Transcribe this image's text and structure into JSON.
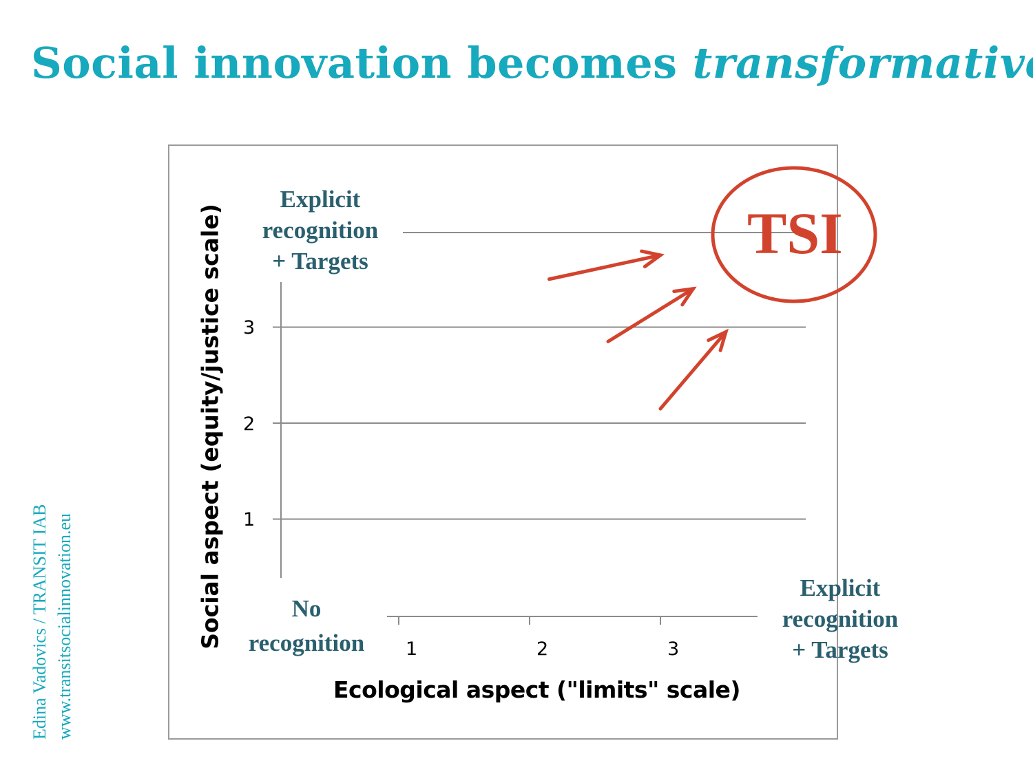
{
  "title": {
    "main": "Social innovation becomes ",
    "emph": "transformative",
    "colon": ":"
  },
  "credit": {
    "line1": "Edina Vadovics / TRANSIT IAB",
    "line2": "www.transitsocialinnovation.eu"
  },
  "colors": {
    "title": "#17a9bd",
    "category_text": "#2a5f6e",
    "accent": "#d2432d",
    "grid": "#8c8c8c"
  },
  "chart_data": {
    "type": "scatter",
    "xlabel": "Ecological aspect (\"limits\" scale)",
    "ylabel": "Social aspect (equity/justice scale)",
    "x_ticks": [
      1,
      2,
      3
    ],
    "y_ticks": [
      1,
      2,
      3
    ],
    "x_low_label": [
      "No",
      "recognition"
    ],
    "x_high_label": [
      "Explicit",
      "recognition",
      "+ Targets"
    ],
    "y_high_label": [
      "Explicit",
      "recognition",
      "+ Targets"
    ],
    "grid": true,
    "annotation": {
      "text": "TSI",
      "shape": "ellipse",
      "position": "top-right"
    },
    "arrows": [
      {
        "from": [
          2.15,
          3.5
        ],
        "to": [
          3.0,
          3.75
        ]
      },
      {
        "from": [
          2.6,
          2.85
        ],
        "to": [
          3.25,
          3.4
        ]
      },
      {
        "from": [
          3.0,
          2.15
        ],
        "to": [
          3.5,
          2.95
        ]
      }
    ]
  }
}
